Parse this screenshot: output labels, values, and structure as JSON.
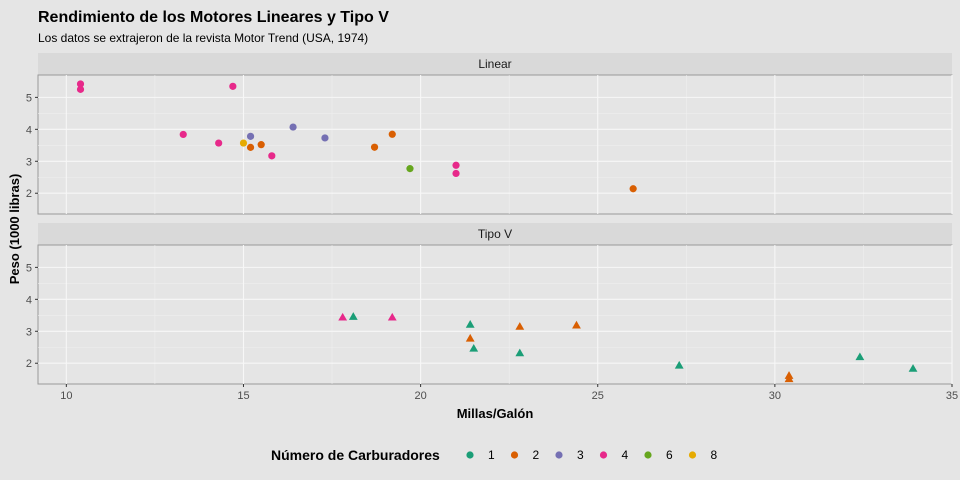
{
  "chart_data": {
    "type": "scatter",
    "title": "Rendimiento de los Motores Lineares y Tipo V",
    "subtitle": "Los datos se extrajeron de la revista Motor Trend (USA, 1974)",
    "xlabel": "Millas/Galón",
    "ylabel": "Peso (1000 libras)",
    "xlim": [
      9.2,
      35.0
    ],
    "ylim": [
      1.35,
      5.7
    ],
    "x_ticks": [
      "10",
      "15",
      "20",
      "25",
      "30",
      "35"
    ],
    "y_ticks": [
      "2",
      "3",
      "4",
      "5"
    ],
    "x_tick_values": [
      10,
      15,
      20,
      25,
      30,
      35
    ],
    "y_tick_values": [
      2,
      3,
      4,
      5
    ],
    "grid": true,
    "legend_position": "bottom",
    "legend": {
      "title": "Número de Carburadores",
      "items": [
        {
          "label": "1",
          "color": "#1b9e77"
        },
        {
          "label": "2",
          "color": "#d95f02"
        },
        {
          "label": "3",
          "color": "#7570b3"
        },
        {
          "label": "4",
          "color": "#e7298a"
        },
        {
          "label": "6",
          "color": "#66a61e"
        },
        {
          "label": "8",
          "color": "#e6ab02"
        }
      ]
    },
    "facets": [
      {
        "label": "Linear",
        "marker": "circle",
        "points": [
          {
            "x": 10.4,
            "y": 5.42,
            "carb": "4"
          },
          {
            "x": 10.4,
            "y": 5.25,
            "carb": "4"
          },
          {
            "x": 14.7,
            "y": 5.345,
            "carb": "4"
          },
          {
            "x": 13.3,
            "y": 3.84,
            "carb": "4"
          },
          {
            "x": 14.3,
            "y": 3.57,
            "carb": "4"
          },
          {
            "x": 15.0,
            "y": 3.57,
            "carb": "8"
          },
          {
            "x": 15.2,
            "y": 3.78,
            "carb": "3"
          },
          {
            "x": 15.2,
            "y": 3.435,
            "carb": "2"
          },
          {
            "x": 15.5,
            "y": 3.52,
            "carb": "2"
          },
          {
            "x": 15.8,
            "y": 3.17,
            "carb": "4"
          },
          {
            "x": 16.4,
            "y": 4.07,
            "carb": "3"
          },
          {
            "x": 17.3,
            "y": 3.73,
            "carb": "3"
          },
          {
            "x": 18.7,
            "y": 3.44,
            "carb": "2"
          },
          {
            "x": 19.2,
            "y": 3.845,
            "carb": "2"
          },
          {
            "x": 19.7,
            "y": 2.77,
            "carb": "6"
          },
          {
            "x": 21.0,
            "y": 2.875,
            "carb": "4"
          },
          {
            "x": 21.0,
            "y": 2.62,
            "carb": "4"
          },
          {
            "x": 26.0,
            "y": 2.14,
            "carb": "2"
          }
        ]
      },
      {
        "label": "Tipo V",
        "marker": "triangle",
        "points": [
          {
            "x": 17.8,
            "y": 3.44,
            "carb": "4"
          },
          {
            "x": 18.1,
            "y": 3.46,
            "carb": "1"
          },
          {
            "x": 19.2,
            "y": 3.44,
            "carb": "4"
          },
          {
            "x": 21.4,
            "y": 3.215,
            "carb": "1"
          },
          {
            "x": 21.4,
            "y": 2.78,
            "carb": "2"
          },
          {
            "x": 21.5,
            "y": 2.465,
            "carb": "1"
          },
          {
            "x": 22.8,
            "y": 3.15,
            "carb": "2"
          },
          {
            "x": 22.8,
            "y": 2.32,
            "carb": "1"
          },
          {
            "x": 24.4,
            "y": 3.19,
            "carb": "2"
          },
          {
            "x": 27.3,
            "y": 1.935,
            "carb": "1"
          },
          {
            "x": 30.4,
            "y": 1.615,
            "carb": "2"
          },
          {
            "x": 30.4,
            "y": 1.513,
            "carb": "2"
          },
          {
            "x": 32.4,
            "y": 2.2,
            "carb": "1"
          },
          {
            "x": 33.9,
            "y": 1.835,
            "carb": "1"
          }
        ]
      }
    ]
  }
}
